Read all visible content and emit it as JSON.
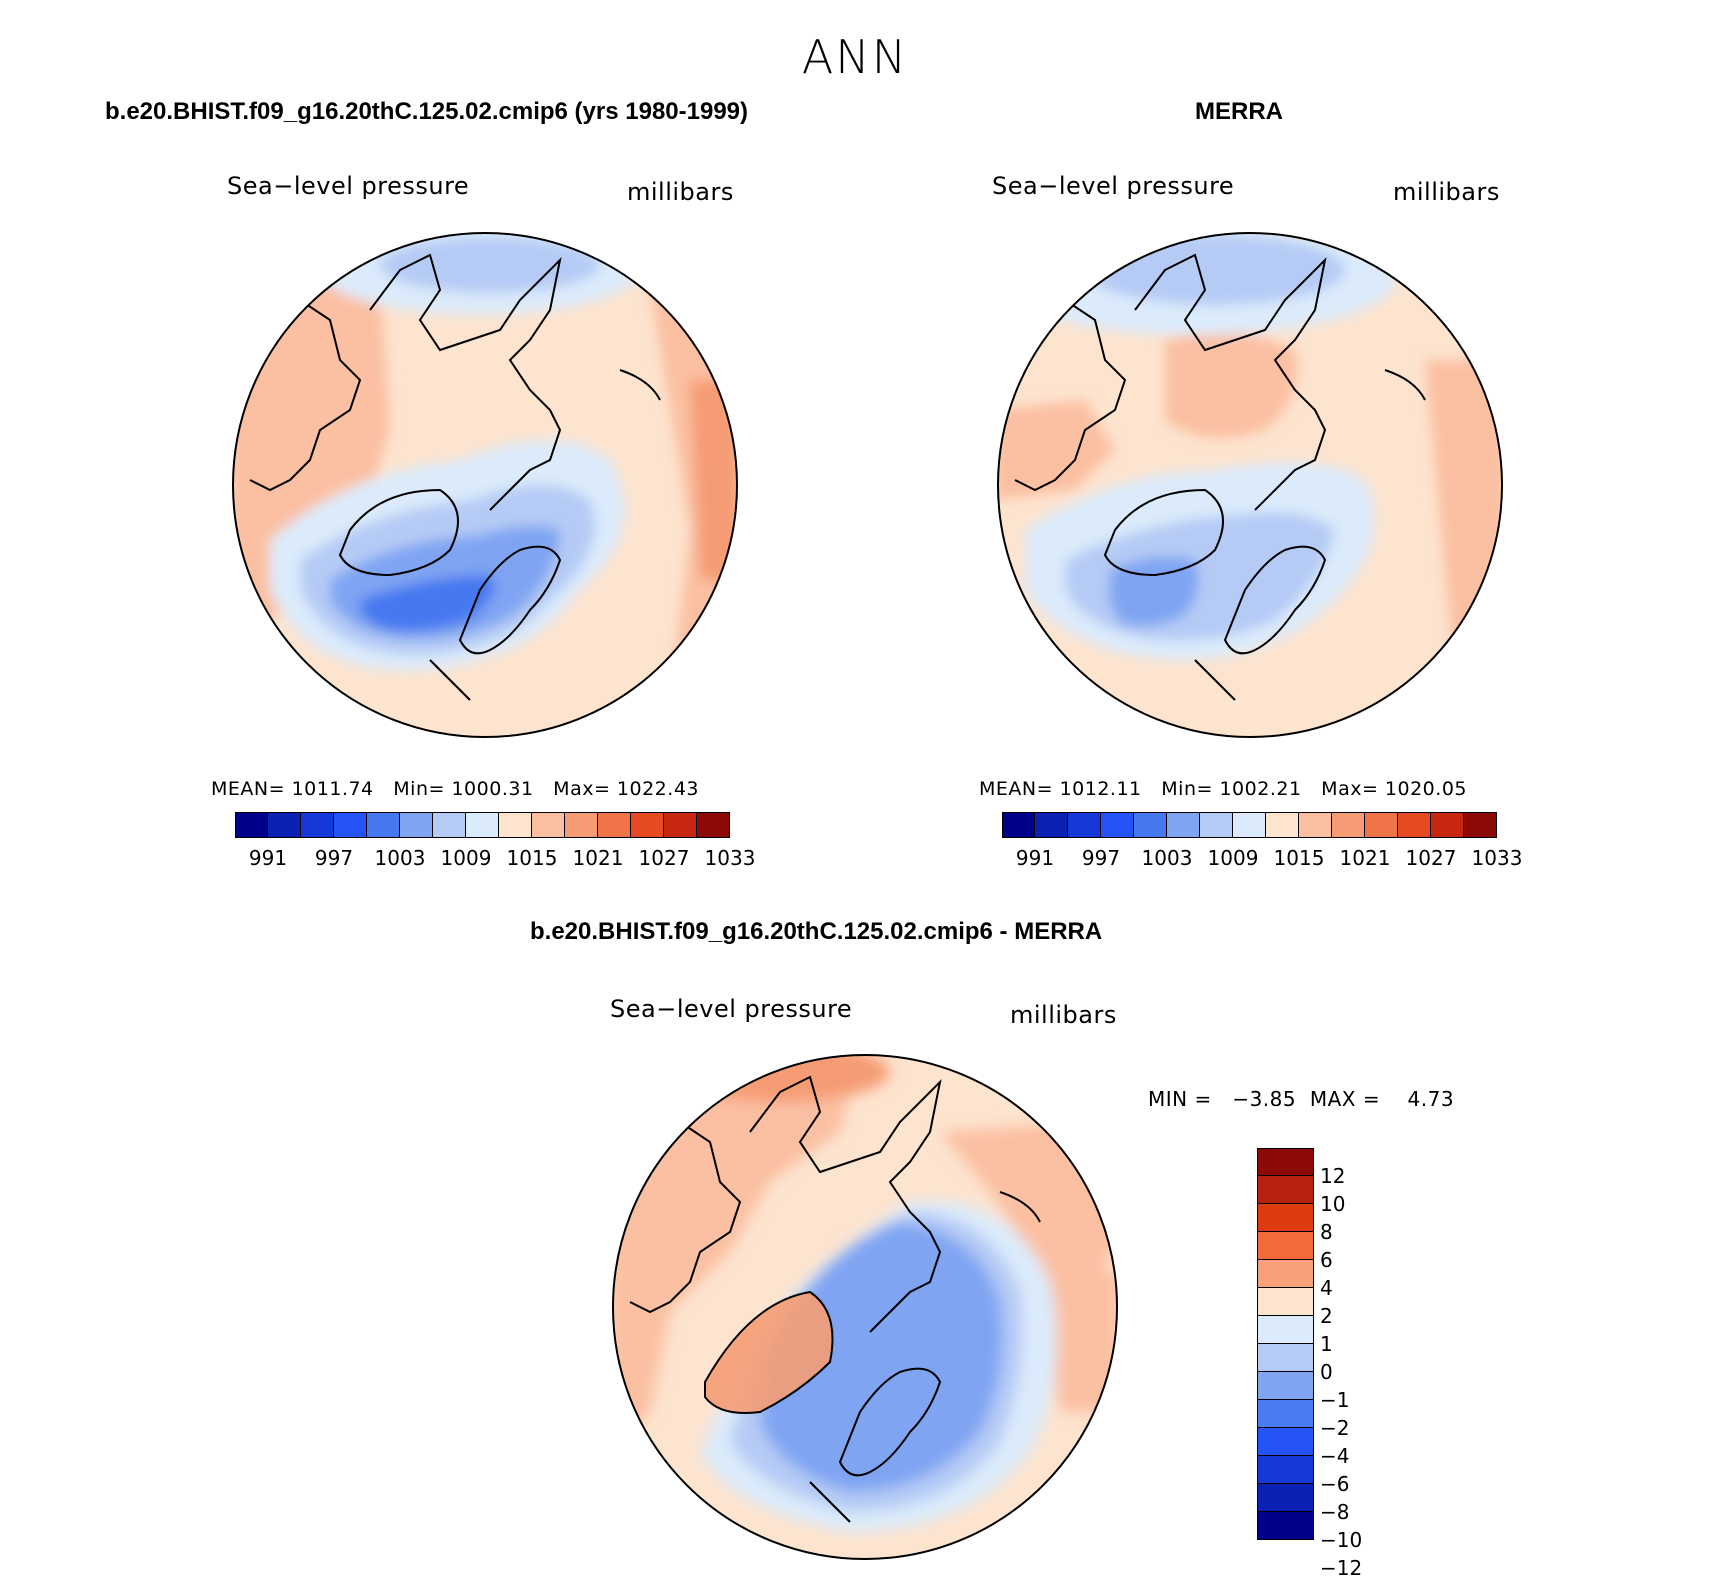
{
  "page": {
    "title": "ANN"
  },
  "panels": {
    "model": {
      "header": "b.e20.BHIST.f09_g16.20thC.125.02.cmip6 (yrs 1980-1999)",
      "variable": "Sea−level pressure",
      "units": "millibars",
      "stats": {
        "mean_label": "MEAN=",
        "mean": "1011.74",
        "min_label": "Min=",
        "min": "1000.31",
        "max_label": "Max=",
        "max": "1022.43"
      }
    },
    "obs": {
      "header": "MERRA",
      "variable": "Sea−level pressure",
      "units": "millibars",
      "stats": {
        "mean_label": "MEAN=",
        "mean": "1012.11",
        "min_label": "Min=",
        "min": "1002.21",
        "max_label": "Max=",
        "max": "1020.05"
      }
    },
    "diff": {
      "header": "b.e20.BHIST.f09_g16.20thC.125.02.cmip6 - MERRA",
      "variable": "Sea−level pressure",
      "units": "millibars",
      "min_label": "MIN =",
      "min": "−3.85",
      "max_label": "MAX =",
      "max": "4.73"
    }
  },
  "chart_data": [
    {
      "type": "heatmap",
      "title": "b.e20.BHIST.f09_g16.20thC.125.02.cmip6 (yrs 1980-1999)",
      "subtitle": "Sea-level pressure",
      "units": "millibars",
      "projection": "polar stereographic (north)",
      "mean": 1011.74,
      "min": 1000.31,
      "max": 1022.43,
      "colorbar_ticks": [
        "991",
        "997",
        "1003",
        "1009",
        "1015",
        "1021",
        "1027",
        "1033"
      ]
    },
    {
      "type": "heatmap",
      "title": "MERRA",
      "subtitle": "Sea-level pressure",
      "units": "millibars",
      "projection": "polar stereographic (north)",
      "mean": 1012.11,
      "min": 1002.21,
      "max": 1020.05,
      "colorbar_ticks": [
        "991",
        "997",
        "1003",
        "1009",
        "1015",
        "1021",
        "1027",
        "1033"
      ]
    },
    {
      "type": "heatmap",
      "title": "b.e20.BHIST.f09_g16.20thC.125.02.cmip6 - MERRA",
      "subtitle": "Sea-level pressure",
      "units": "millibars",
      "projection": "polar stereographic (north)",
      "min": -3.85,
      "max": 4.73,
      "colorbar_ticks": [
        "12",
        "10",
        "8",
        "6",
        "4",
        "2",
        "1",
        "0",
        "−1",
        "−2",
        "−4",
        "−6",
        "−8",
        "−10",
        "−12"
      ]
    }
  ],
  "colorbars": {
    "abs_colors": [
      "#00008b",
      "#0a21b4",
      "#1638d9",
      "#2454f5",
      "#4678f0",
      "#7fa4f2",
      "#b5cbf5",
      "#dcebfb",
      "#fde4cf",
      "#fbc0a2",
      "#f59c74",
      "#ef7448",
      "#e54a22",
      "#c8280f",
      "#8b0a05"
    ],
    "abs_ticks": [
      "991",
      "997",
      "1003",
      "1009",
      "1015",
      "1021",
      "1027",
      "1033"
    ],
    "diff_colors_top_to_bottom": [
      "#8b0a05",
      "#b82110",
      "#dc3a0f",
      "#f26a3a",
      "#f7a07a",
      "#fde4cf",
      "#dcebfb",
      "#b5cbf5",
      "#7fa4f2",
      "#4a7bf0",
      "#2454f5",
      "#1638d9",
      "#0a21b4",
      "#00008b"
    ],
    "diff_ticks": [
      "12",
      "10",
      "8",
      "6",
      "4",
      "2",
      "1",
      "0",
      "−1",
      "−2",
      "−4",
      "−6",
      "−8",
      "−10",
      "−12"
    ]
  }
}
